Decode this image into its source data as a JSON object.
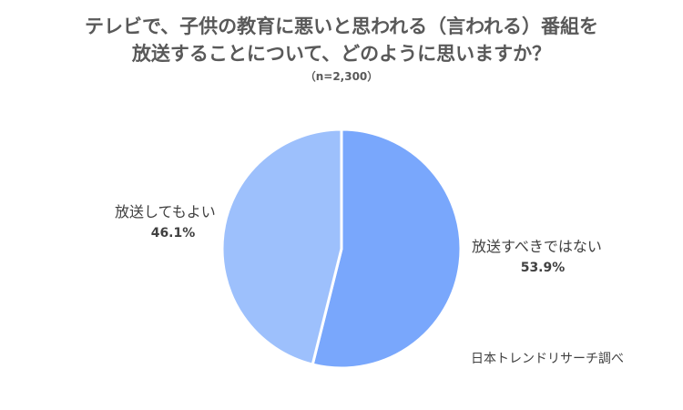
{
  "title_line1": "テレビで、子供の教育に悪いと思われる（言われる）番組を",
  "title_line2": "放送することについて、どのように思いますか？",
  "sample": "（n=2,300）",
  "source": "日本トレンドリサーチ調べ",
  "chart_data": {
    "type": "pie",
    "title": "テレビで、子供の教育に悪いと思われる（言われる）番組を放送することについて、どのように思いますか？",
    "subtitle": "（n=2,300）",
    "slices": [
      {
        "label": "放送すべきではない",
        "value": 53.9,
        "display": "53.9%",
        "color": "#79a7fc"
      },
      {
        "label": "放送してもよい",
        "value": 46.1,
        "display": "46.1%",
        "color": "#9dc0fc"
      }
    ]
  }
}
